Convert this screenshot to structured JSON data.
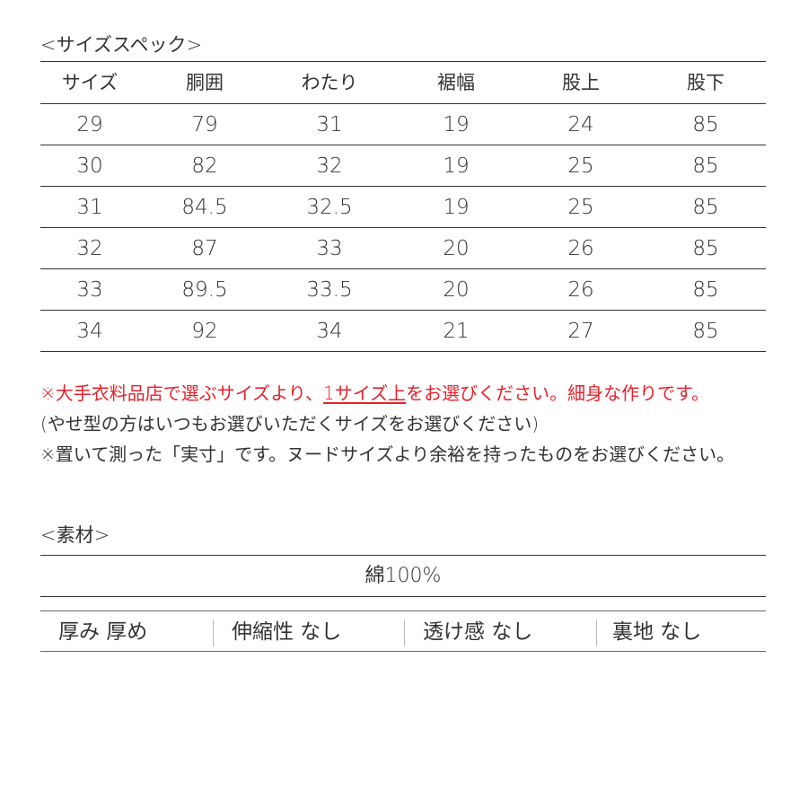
{
  "size_spec": {
    "title": "<サイズスペック>",
    "headers": [
      "サイズ",
      "胴囲",
      "わたり",
      "裾幅",
      "股上",
      "股下"
    ],
    "rows": [
      [
        "29",
        "79",
        "31",
        "19",
        "24",
        "85"
      ],
      [
        "30",
        "82",
        "32",
        "19",
        "25",
        "85"
      ],
      [
        "31",
        "84.5",
        "32.5",
        "19",
        "25",
        "85"
      ],
      [
        "32",
        "87",
        "33",
        "20",
        "26",
        "85"
      ],
      [
        "33",
        "89.5",
        "33.5",
        "20",
        "26",
        "85"
      ],
      [
        "34",
        "92",
        "34",
        "21",
        "27",
        "85"
      ]
    ]
  },
  "notes": {
    "red_before": "※大手衣料品店で選ぶサイズより、",
    "red_underlined": "1サイズ上",
    "red_after": "をお選びください。細身な作りです。",
    "line2": "(やせ型の方はいつもお選びいただくサイズをお選びください)",
    "line3": "※置いて測った「実寸」です。ヌードサイズより余裕を持ったものをお選びください。",
    "accent_color": "#e8202a"
  },
  "material": {
    "title": "<素材>",
    "composition": "綿100%",
    "properties": [
      "厚み 厚め",
      "伸縮性 なし",
      "透け感 なし",
      "裏地 なし"
    ]
  }
}
